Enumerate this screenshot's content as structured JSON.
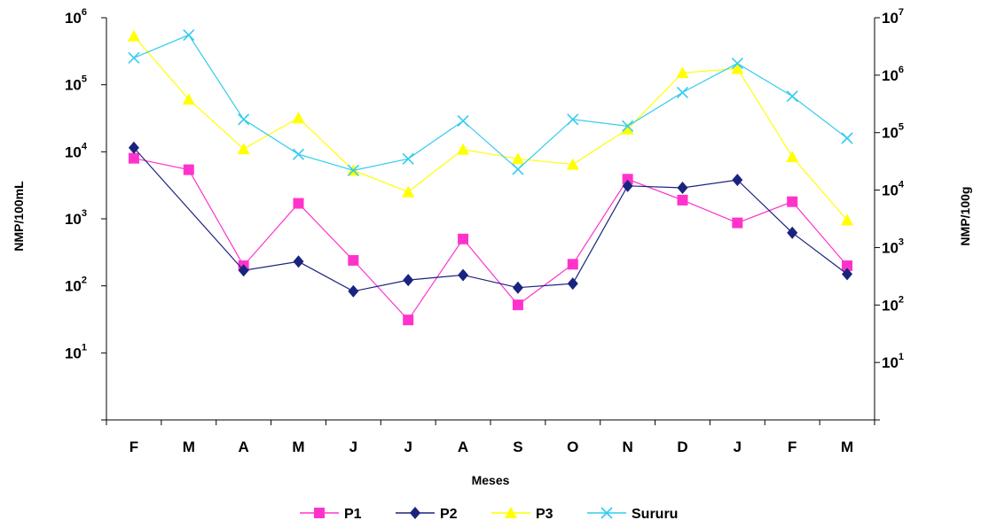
{
  "chart_data": {
    "type": "line",
    "xlabel": "Meses",
    "ylabel_left": "NMP/100mL",
    "ylabel_right": "NMP/100g",
    "categories": [
      "F",
      "M",
      "A",
      "M",
      "J",
      "J",
      "A",
      "S",
      "O",
      "N",
      "D",
      "J",
      "F",
      "M"
    ],
    "y_scale": "log",
    "ylim_left": [
      1,
      1000000
    ],
    "ylim_right": [
      1,
      10000000
    ],
    "left_ticks": [
      {
        "value": 10,
        "base": "10",
        "exp": "1"
      },
      {
        "value": 100,
        "base": "10",
        "exp": "2"
      },
      {
        "value": 1000,
        "base": "10",
        "exp": "3"
      },
      {
        "value": 10000,
        "base": "10",
        "exp": "4"
      },
      {
        "value": 100000,
        "base": "10",
        "exp": "5"
      },
      {
        "value": 1000000,
        "base": "10",
        "exp": "6"
      }
    ],
    "right_ticks": [
      {
        "value": 10,
        "base": "10",
        "exp": "1"
      },
      {
        "value": 100,
        "base": "10",
        "exp": "2"
      },
      {
        "value": 1000,
        "base": "10",
        "exp": "3"
      },
      {
        "value": 10000,
        "base": "10",
        "exp": "4"
      },
      {
        "value": 100000,
        "base": "10",
        "exp": "5"
      },
      {
        "value": 1000000,
        "base": "10",
        "exp": "6"
      },
      {
        "value": 10000000,
        "base": "10",
        "exp": "7"
      }
    ],
    "series": [
      {
        "name": "P1",
        "axis": "left",
        "color": "#ff33cc",
        "marker": "square",
        "values": [
          8000,
          5400,
          200,
          1700,
          240,
          31,
          500,
          52,
          210,
          3900,
          1900,
          870,
          1800,
          200
        ]
      },
      {
        "name": "P2",
        "axis": "left",
        "color": "#1a237e",
        "marker": "diamond",
        "values": [
          11500,
          null,
          170,
          230,
          83,
          122,
          145,
          94,
          108,
          3100,
          2900,
          3800,
          620,
          150
        ]
      },
      {
        "name": "P3",
        "axis": "right",
        "color": "#ffff00",
        "marker": "triangle",
        "values": [
          4800000,
          380000,
          52000,
          180000,
          22000,
          9300,
          51000,
          35000,
          28000,
          115000,
          1100000,
          1300000,
          38000,
          3000
        ]
      },
      {
        "name": "Sururu",
        "axis": "right",
        "color": "#33ccee",
        "marker": "x",
        "values": [
          2000000,
          5000000,
          170000,
          42000,
          22000,
          35000,
          160000,
          23000,
          170000,
          130000,
          500000,
          1600000,
          430000,
          80000
        ]
      }
    ],
    "legend_position": "bottom",
    "grid": false
  }
}
